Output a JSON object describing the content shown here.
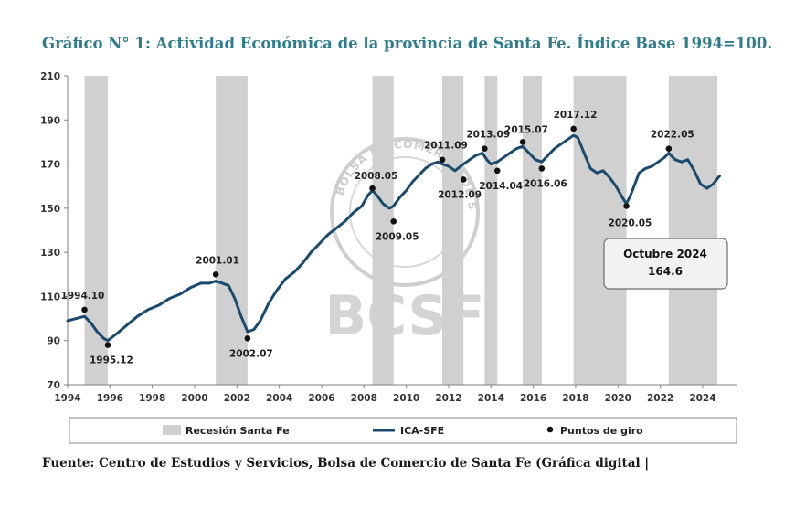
{
  "title": "Gráfico N° 1: Actividad Económica de la provincia de Santa Fe. Índice Base 1994=100.",
  "source": "Fuente: Centro de Estudios y Servicios, Bolsa de Comercio de Santa Fe (Gráfica digital |",
  "watermark": {
    "text": "BCSF",
    "seal_text": "BOLSA DE COMERCIO DE SANTA FE"
  },
  "colors": {
    "line": "#1a4a6e",
    "recession": "#d0d0d0",
    "title": "#2f7d8c",
    "points": "#111111"
  },
  "chart_data": {
    "type": "line",
    "xlim": [
      1994,
      2025.6
    ],
    "ylim": [
      70,
      210
    ],
    "x_ticks": [
      1994,
      1996,
      1998,
      2000,
      2002,
      2004,
      2006,
      2008,
      2010,
      2012,
      2014,
      2016,
      2018,
      2020,
      2022,
      2024
    ],
    "y_ticks": [
      70,
      90,
      110,
      130,
      150,
      170,
      190,
      210
    ],
    "grid": false,
    "legend": {
      "position": "bottom",
      "items": [
        {
          "label": "Recesión Santa Fe",
          "kind": "band"
        },
        {
          "label": "ICA-SFE",
          "kind": "line"
        },
        {
          "label": "Puntos de giro",
          "kind": "point"
        }
      ]
    },
    "recessions": [
      [
        1994.8,
        1995.9
      ],
      [
        2001.0,
        2002.5
      ],
      [
        2008.4,
        2009.4
      ],
      [
        2011.7,
        2012.7
      ],
      [
        2013.7,
        2014.3
      ],
      [
        2015.5,
        2016.4
      ],
      [
        2017.9,
        2020.4
      ],
      [
        2022.4,
        2024.7
      ]
    ],
    "series": [
      {
        "name": "ICA-SFE",
        "x": [
          1994.0,
          1994.4,
          1994.8,
          1995.1,
          1995.4,
          1995.7,
          1995.9,
          1996.3,
          1996.8,
          1997.3,
          1997.8,
          1998.3,
          1998.8,
          1999.3,
          1999.8,
          2000.3,
          2000.7,
          2001.0,
          2001.3,
          2001.6,
          2001.9,
          2002.2,
          2002.5,
          2002.8,
          2003.1,
          2003.5,
          2003.9,
          2004.3,
          2004.7,
          2005.1,
          2005.5,
          2005.9,
          2006.3,
          2006.7,
          2007.1,
          2007.5,
          2007.9,
          2008.2,
          2008.4,
          2008.6,
          2008.9,
          2009.2,
          2009.4,
          2009.7,
          2010.0,
          2010.3,
          2010.6,
          2010.9,
          2011.2,
          2011.5,
          2011.7,
          2012.0,
          2012.3,
          2012.7,
          2013.0,
          2013.3,
          2013.6,
          2013.8,
          2014.0,
          2014.3,
          2014.6,
          2014.9,
          2015.2,
          2015.5,
          2015.8,
          2016.1,
          2016.4,
          2016.7,
          2017.0,
          2017.3,
          2017.6,
          2017.9,
          2018.1,
          2018.4,
          2018.7,
          2019.0,
          2019.3,
          2019.6,
          2019.9,
          2020.2,
          2020.4,
          2020.6,
          2020.8,
          2021.0,
          2021.3,
          2021.6,
          2021.9,
          2022.2,
          2022.4,
          2022.7,
          2023.0,
          2023.3,
          2023.6,
          2023.9,
          2024.2,
          2024.5,
          2024.8
        ],
        "y": [
          99,
          100,
          101,
          98,
          94,
          91,
          90,
          93,
          97,
          101,
          104,
          106,
          109,
          111,
          114,
          116,
          116,
          117,
          116,
          115,
          109,
          101,
          94,
          95,
          99,
          107,
          113,
          118,
          121,
          125,
          130,
          134,
          138,
          141,
          144,
          148,
          151,
          156,
          158,
          156,
          152,
          150,
          151,
          155,
          158,
          162,
          165,
          168,
          170,
          171,
          170,
          169,
          167,
          170,
          172,
          174,
          175,
          172,
          170,
          171,
          173,
          175,
          177,
          178,
          175,
          172,
          171,
          174,
          177,
          179,
          181,
          183,
          182,
          175,
          168,
          166,
          167,
          164,
          160,
          155,
          152,
          156,
          161,
          166,
          168,
          169,
          171,
          173,
          175,
          172,
          171,
          172,
          167,
          161,
          159,
          161,
          164.6
        ]
      }
    ],
    "turning_points": [
      {
        "label": "1994.10",
        "x": 1994.8,
        "y": 104
      },
      {
        "label": "1995.12",
        "x": 1995.9,
        "y": 88
      },
      {
        "label": "2001.01",
        "x": 2001.0,
        "y": 120
      },
      {
        "label": "2002.07",
        "x": 2002.5,
        "y": 91
      },
      {
        "label": "2008.05",
        "x": 2008.4,
        "y": 159
      },
      {
        "label": "2009.05",
        "x": 2009.4,
        "y": 144
      },
      {
        "label": "2011.09",
        "x": 2011.7,
        "y": 172
      },
      {
        "label": "2012.09",
        "x": 2012.7,
        "y": 163
      },
      {
        "label": "2013.09",
        "x": 2013.7,
        "y": 177
      },
      {
        "label": "2014.04",
        "x": 2014.3,
        "y": 167
      },
      {
        "label": "2015.07",
        "x": 2015.5,
        "y": 180
      },
      {
        "label": "2016.06",
        "x": 2016.4,
        "y": 168
      },
      {
        "label": "2017.12",
        "x": 2017.9,
        "y": 186
      },
      {
        "label": "2020.05",
        "x": 2020.4,
        "y": 151
      },
      {
        "label": "2022.05",
        "x": 2022.4,
        "y": 177
      }
    ],
    "annotation": {
      "line1": "Octubre 2024",
      "line2": "164.6"
    }
  }
}
